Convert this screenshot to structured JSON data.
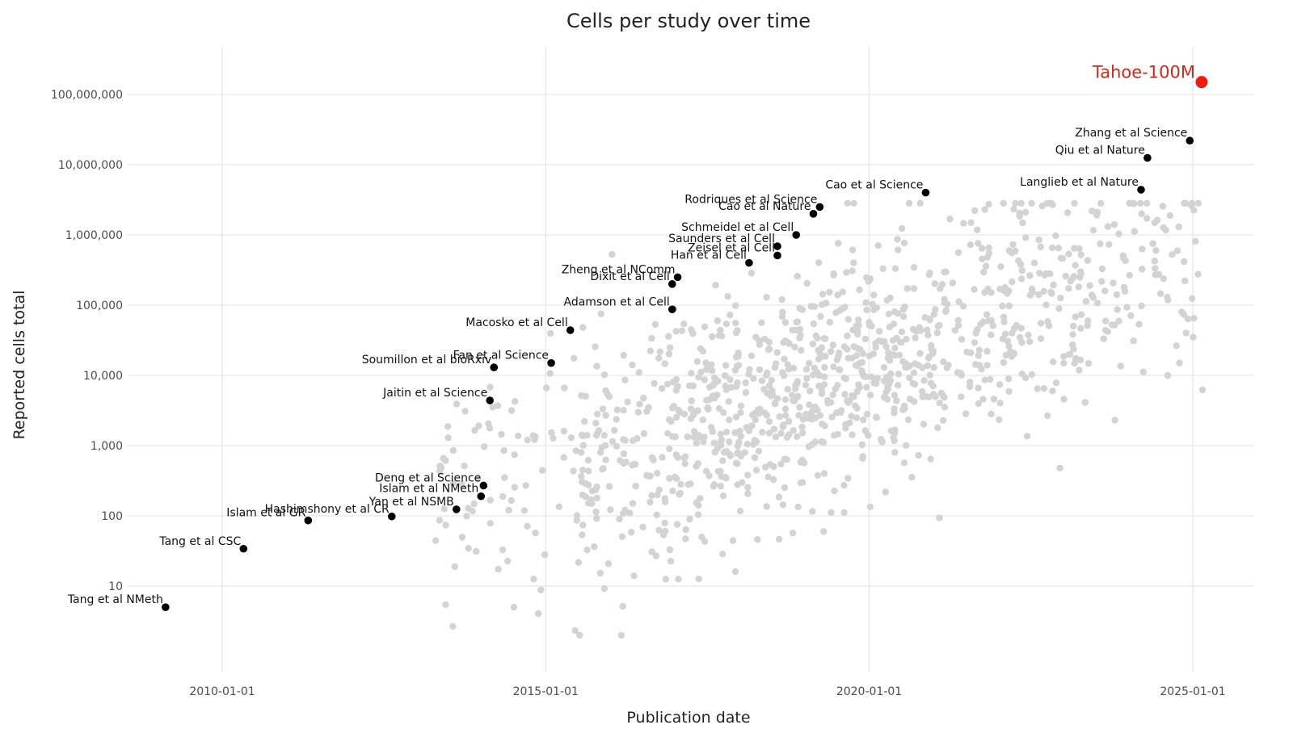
{
  "chart_data": {
    "type": "scatter",
    "title": "Cells per study over time",
    "xlabel": "Publication date",
    "ylabel": "Reported cells total",
    "xscale": "date",
    "yscale": "log10",
    "xlim": [
      "2008-06-01",
      "2025-12-31"
    ],
    "ylim": [
      1,
      500000000
    ],
    "grid": true,
    "legend": "none",
    "x_ticks": [
      {
        "value": "2010-01-01",
        "label": "2010-01-01"
      },
      {
        "value": "2015-01-01",
        "label": "2015-01-01"
      },
      {
        "value": "2020-01-01",
        "label": "2020-01-01"
      },
      {
        "value": "2025-01-01",
        "label": "2025-01-01"
      }
    ],
    "y_ticks": [
      {
        "value": 10,
        "label": "10"
      },
      {
        "value": 100,
        "label": "100"
      },
      {
        "value": 1000,
        "label": "1,000"
      },
      {
        "value": 10000,
        "label": "10,000"
      },
      {
        "value": 100000,
        "label": "100,000"
      },
      {
        "value": 1000000,
        "label": "1,000,000"
      },
      {
        "value": 10000000,
        "label": "10,000,000"
      },
      {
        "value": 100000000,
        "label": "100,000,000"
      }
    ],
    "labeled_points": [
      {
        "label": "Tang et al NMeth",
        "x": "2009-02-15",
        "y": 5,
        "anchor": "end"
      },
      {
        "label": "Tang et al CSC",
        "x": "2010-05-01",
        "y": 34,
        "anchor": "end"
      },
      {
        "label": "Islam et al GR",
        "x": "2011-05-01",
        "y": 86,
        "anchor": "end"
      },
      {
        "label": "Hashimshony et al CR",
        "x": "2012-08-15",
        "y": 98,
        "anchor": "end"
      },
      {
        "label": "Yan et al NSMB",
        "x": "2013-08-15",
        "y": 124,
        "anchor": "end"
      },
      {
        "label": "Islam et al NMeth",
        "x": "2014-01-01",
        "y": 190,
        "anchor": "end"
      },
      {
        "label": "Deng et al Science",
        "x": "2014-01-15",
        "y": 270,
        "anchor": "end"
      },
      {
        "label": "Jaitin et al Science",
        "x": "2014-02-20",
        "y": 4400,
        "anchor": "end"
      },
      {
        "label": "Soumillon et al bioRxiv",
        "x": "2014-03-15",
        "y": 13000,
        "anchor": "end"
      },
      {
        "label": "Fan et al Science",
        "x": "2015-02-01",
        "y": 15000,
        "anchor": "end"
      },
      {
        "label": "Macosko et al Cell",
        "x": "2015-05-20",
        "y": 44000,
        "anchor": "end"
      },
      {
        "label": "Adamson et al Cell",
        "x": "2016-12-15",
        "y": 87000,
        "anchor": "end"
      },
      {
        "label": "Dixit et al Cell",
        "x": "2016-12-15",
        "y": 200000,
        "anchor": "end"
      },
      {
        "label": "Zheng et al NComm",
        "x": "2017-01-15",
        "y": 250000,
        "anchor": "end"
      },
      {
        "label": "Han et al Cell",
        "x": "2018-02-22",
        "y": 400000,
        "anchor": "end"
      },
      {
        "label": "Zeisel et al Cell",
        "x": "2018-08-01",
        "y": 510000,
        "anchor": "end"
      },
      {
        "label": "Saunders et al Cell",
        "x": "2018-08-01",
        "y": 690000,
        "anchor": "end"
      },
      {
        "label": "Schmeidel et al Cell",
        "x": "2018-11-15",
        "y": 1000000,
        "anchor": "end"
      },
      {
        "label": "Cao et al Nature",
        "x": "2019-02-20",
        "y": 2000000,
        "anchor": "end"
      },
      {
        "label": "Rodriques et al Science",
        "x": "2019-03-28",
        "y": 2500000,
        "anchor": "end"
      },
      {
        "label": "Cao et al Science",
        "x": "2020-11-15",
        "y": 4000000,
        "anchor": "end"
      },
      {
        "label": "Langlieb et al Nature",
        "x": "2024-03-15",
        "y": 4400000,
        "anchor": "end"
      },
      {
        "label": "Qiu et al Nature",
        "x": "2024-04-20",
        "y": 12500000,
        "anchor": "end"
      },
      {
        "label": "Zhang et al Science",
        "x": "2024-12-15",
        "y": 22000000,
        "anchor": "end"
      }
    ],
    "highlight_point": {
      "label": "Tahoe-100M",
      "x": "2025-02-20",
      "y": 150000000,
      "color": "#ee1c0e"
    },
    "colors": {
      "background_points": "#d3d3d3",
      "labeled_points": "#000000",
      "highlight": "#ee1c0e",
      "highlight_label": "#d1281a",
      "grid": "#e6e6ec"
    }
  }
}
